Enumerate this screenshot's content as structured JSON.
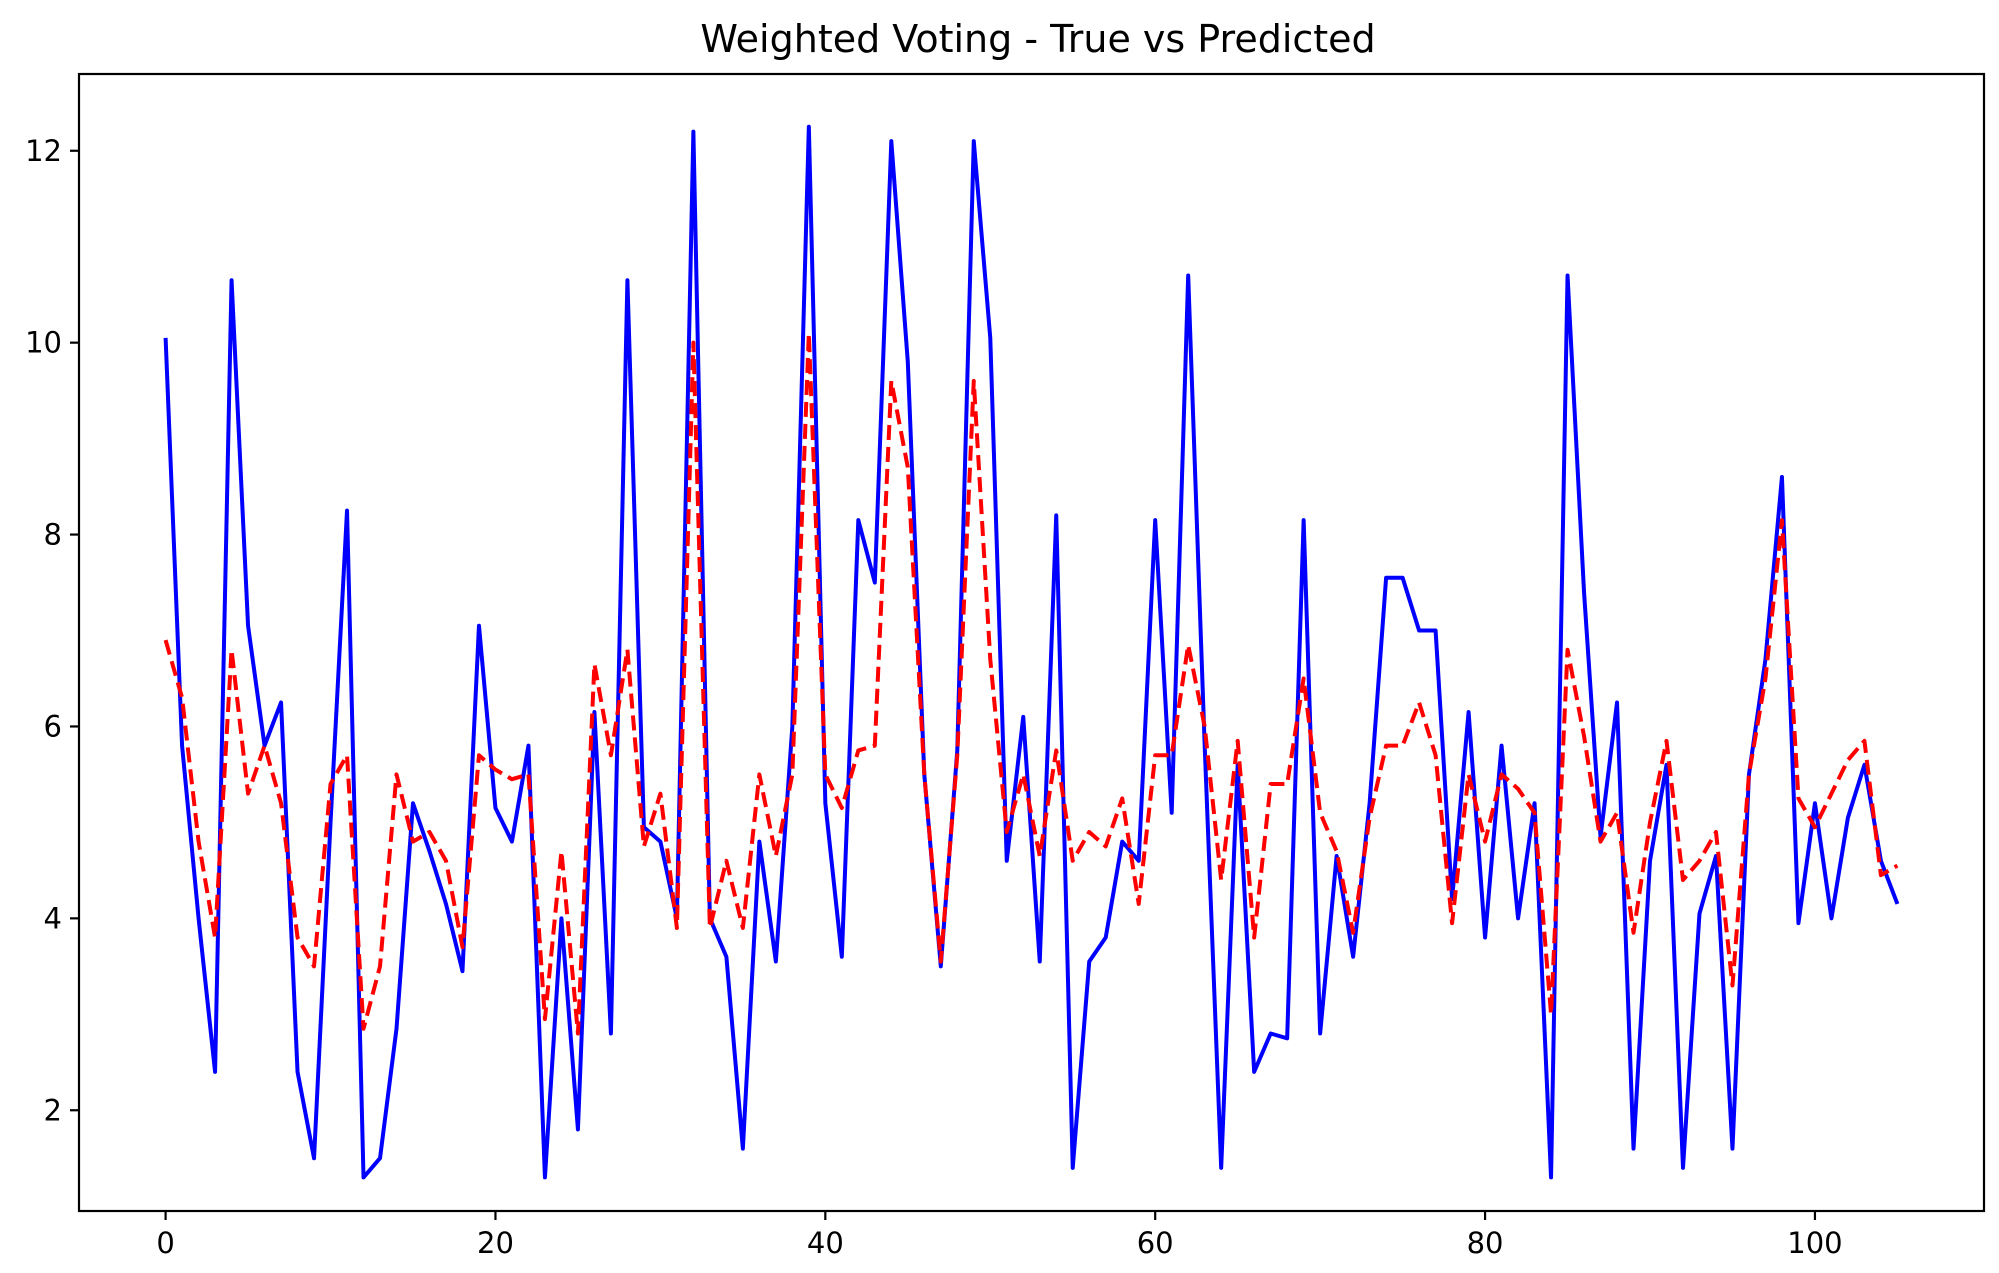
{
  "chart_data": {
    "type": "line",
    "title": "Weighted Voting - True vs Predicted",
    "xlabel": "",
    "ylabel": "",
    "xlim": [
      -5.25,
      110.25
    ],
    "ylim": [
      0.95,
      12.8
    ],
    "xticks": [
      0,
      20,
      40,
      60,
      80,
      100
    ],
    "yticks": [
      2,
      4,
      6,
      8,
      10,
      12
    ],
    "grid": false,
    "legend": "none",
    "series": [
      {
        "name": "True",
        "color": "#0000ff",
        "style": "solid",
        "values": [
          10.05,
          5.8,
          4.0,
          2.4,
          10.65,
          7.05,
          5.8,
          6.25,
          2.4,
          1.5,
          5.0,
          8.25,
          1.3,
          1.5,
          2.85,
          5.2,
          4.7,
          4.15,
          3.45,
          7.05,
          5.15,
          4.8,
          5.8,
          1.3,
          4.0,
          1.8,
          6.15,
          2.8,
          10.65,
          4.95,
          4.8,
          4.0,
          12.2,
          4.0,
          3.6,
          1.6,
          4.8,
          3.55,
          6.0,
          12.25,
          5.2,
          3.6,
          8.15,
          7.5,
          12.1,
          9.8,
          5.5,
          3.5,
          5.75,
          12.1,
          10.05,
          4.6,
          6.1,
          3.55,
          8.2,
          1.4,
          3.55,
          3.8,
          4.8,
          4.6,
          8.15,
          5.1,
          10.7,
          5.8,
          1.4,
          5.6,
          2.4,
          2.8,
          2.75,
          8.15,
          2.8,
          4.65,
          3.6,
          5.2,
          7.55,
          7.55,
          7.0,
          7.0,
          4.2,
          6.15,
          3.8,
          5.8,
          4.0,
          5.2,
          1.3,
          10.7,
          7.4,
          4.85,
          6.25,
          1.6,
          4.6,
          5.6,
          1.4,
          4.05,
          4.65,
          1.6,
          5.5,
          6.7,
          8.6,
          3.95,
          5.2,
          4.0,
          5.05,
          5.6,
          4.6,
          4.15
        ]
      },
      {
        "name": "Predicted",
        "color": "#ff0000",
        "style": "dashed",
        "values": [
          6.9,
          6.3,
          4.8,
          3.8,
          6.8,
          5.3,
          5.8,
          5.2,
          3.8,
          3.5,
          5.4,
          5.7,
          2.85,
          3.5,
          5.5,
          4.8,
          4.9,
          4.6,
          3.7,
          5.7,
          5.55,
          5.45,
          5.5,
          2.95,
          4.7,
          2.8,
          6.65,
          5.7,
          6.8,
          4.75,
          5.3,
          3.9,
          10.0,
          3.9,
          4.6,
          3.9,
          5.5,
          4.65,
          5.5,
          10.1,
          5.5,
          5.15,
          5.75,
          5.8,
          9.6,
          8.7,
          5.5,
          3.55,
          5.7,
          9.6,
          6.7,
          4.9,
          5.5,
          4.65,
          5.75,
          4.6,
          4.9,
          4.75,
          5.25,
          4.15,
          5.7,
          5.7,
          6.85,
          6.0,
          4.4,
          5.85,
          3.8,
          5.4,
          5.4,
          6.5,
          5.1,
          4.7,
          3.85,
          5.05,
          5.8,
          5.8,
          6.25,
          5.7,
          3.95,
          5.5,
          4.8,
          5.5,
          5.35,
          5.1,
          3.0,
          6.8,
          5.9,
          4.8,
          5.1,
          3.85,
          5.0,
          5.85,
          4.4,
          4.6,
          4.9,
          3.3,
          5.5,
          6.5,
          8.15,
          5.25,
          4.95,
          5.3,
          5.65,
          5.85,
          4.45,
          4.55
        ]
      }
    ]
  }
}
